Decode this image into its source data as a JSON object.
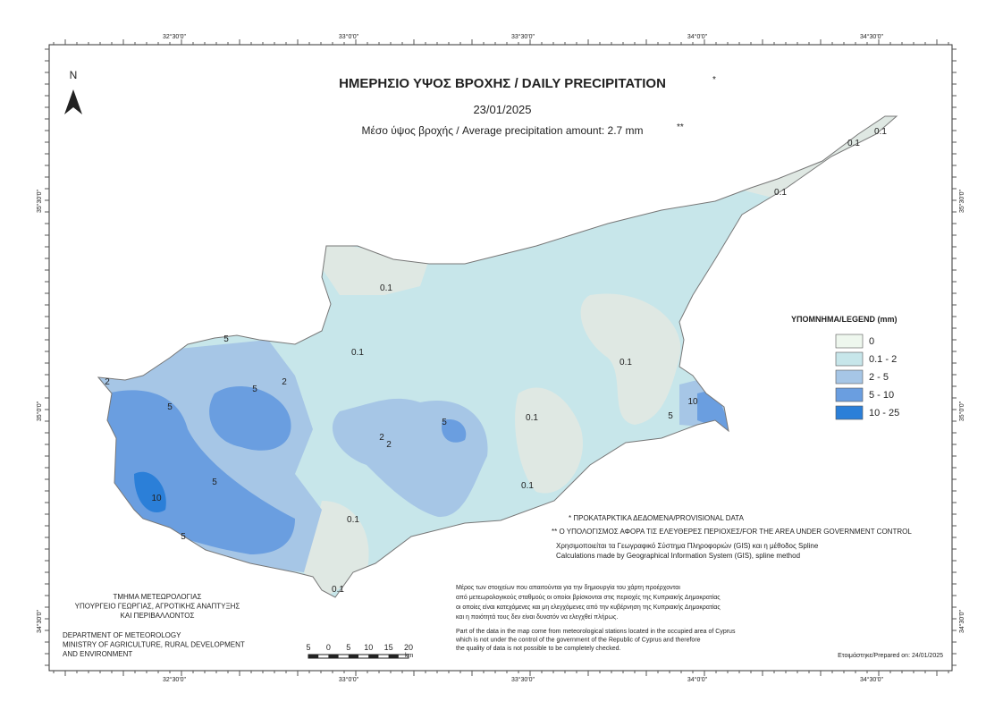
{
  "frame": {
    "top_labels": [
      "32°30'0\"",
      "33°0'0\"",
      "33°30'0\"",
      "34°0'0\"",
      "34°30'0\""
    ],
    "side_labels": [
      "35°30'0\"",
      "35°0'0\"",
      "34°30'0\""
    ],
    "north": "N"
  },
  "header": {
    "title": "ΗΜΕΡΗΣΙΟ ΥΨΟΣ ΒΡΟΧΗΣ / DAILY PRECIPITATION",
    "title_mark": "*",
    "date": "23/01/2025",
    "average": "Μέσο ύψος βροχής / Average precipitation amount: 2.7 mm",
    "average_mark": "**"
  },
  "legend": {
    "title": "ΥΠΟΜΝΗΜΑ/LEGEND (mm)",
    "items": [
      {
        "label": "0",
        "color": "#eef7ee"
      },
      {
        "label": "0.1 - 2",
        "color": "#c7e6ea"
      },
      {
        "label": "2 - 5",
        "color": "#a6c6e6"
      },
      {
        "label": "5 - 10",
        "color": "#6a9ee0"
      },
      {
        "label": "10 - 25",
        "color": "#2b7fd8"
      }
    ]
  },
  "contour_labels": [
    "0.1",
    "0.1",
    "0.1",
    "0.1",
    "0.1",
    "0.1",
    "0.1",
    "0.1",
    "0.1",
    "0.1",
    "5",
    "2",
    "5",
    "5",
    "2",
    "5",
    "10",
    "5",
    "5",
    "2",
    "2",
    "5",
    "10"
  ],
  "notes": {
    "provisional": "* ΠΡΟΚΑΤΑΡΚΤΙΚΑ ΔΕΔΟΜΕΝΑ/PROVISIONAL DATA",
    "area": "** Ο ΥΠΟΛΟΓΙΣΜΟΣ ΑΦΟΡΑ ΤΙΣ ΕΛΕΥΘΕΡΕΣ ΠΕΡΙΟΧΕΣ/FOR THE AREA UNDER GOVERNMENT CONTROL",
    "gis_gr": "Χρησιμοποιείται τα Γεωγραφικό Σύστημα Πληροφοριών (GIS) και η μέθοδος Spline",
    "gis_en": "Calculations made by Geographical Information System (GIS), spline method",
    "gr_lines": [
      "Μέρος των στοιχείων που απαιτούνται για την δημιουργία του χάρτη προέρχονται",
      "από μετεωρολογικούς σταθμούς οι οποίοι βρίσκονται στις περιοχές της Κυπριακής Δημοκρατίας",
      "οι οποίες είναι κατεχόμενες και μη ελεγχόμενες από την κυβέρνηση της Κυπριακής Δημοκρατίας",
      "και η ποιότητά τους δεν είναι δυνατόν να ελεγχθεί πλήρως."
    ],
    "en_lines": [
      "Part of the data in the map come from meteorological stations located in the occupied area of Cyprus",
      "which is not under the control of the government of the Republic of Cyprus and therefore",
      "the quality of data is not possible to be completely checked."
    ]
  },
  "department": {
    "gr_lines": [
      "ΤΜΗΜΑ ΜΕΤΕΩΡΟΛΟΓΙΑΣ",
      "ΥΠΟΥΡΓΕΙΟ ΓΕΩΡΓΙΑΣ, ΑΓΡΟΤΙΚΗΣ ΑΝΑΠΤΥΞΗΣ",
      "ΚΑΙ ΠΕΡΙΒΑΛΛΟΝΤΟΣ"
    ],
    "en_lines": [
      "DEPARTMENT OF METEOROLOGY",
      "MINISTRY OF AGRICULTURE, RURAL DEVELOPMENT",
      "AND ENVIRONMENT"
    ]
  },
  "scale": {
    "labels": [
      "5",
      "0",
      "5",
      "10",
      "15",
      "20"
    ],
    "unit": "km"
  },
  "prepared": "Ετοιμάστηκε/Prepared on: 24/01/2025"
}
